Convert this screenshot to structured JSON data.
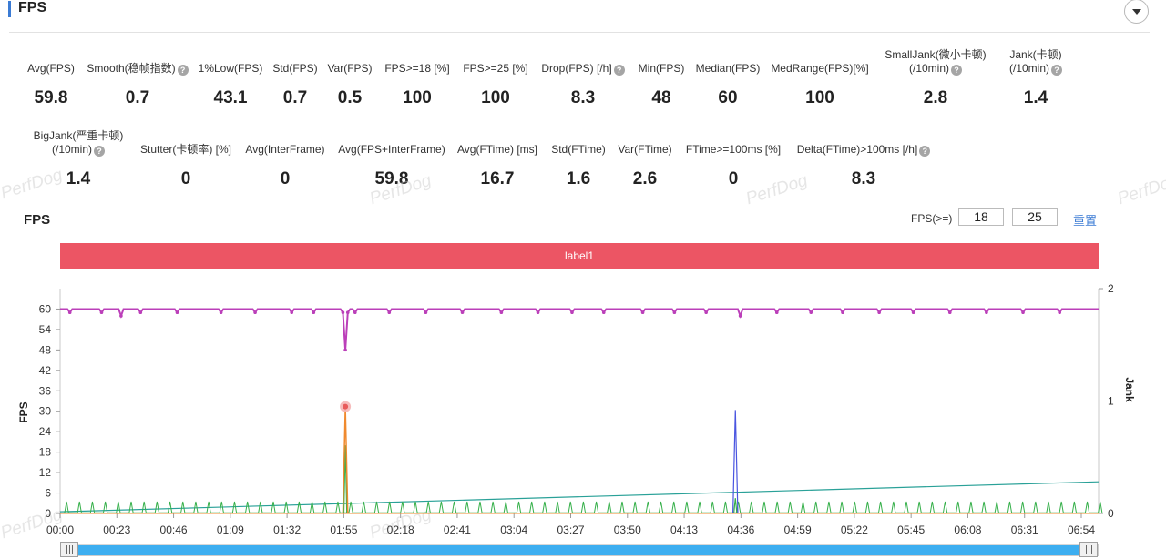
{
  "header": {
    "title": "FPS"
  },
  "metrics_row1": [
    {
      "label": "Avg(FPS)",
      "value": "59.8"
    },
    {
      "label": "Smooth(稳帧指数)",
      "value": "0.7",
      "help": true
    },
    {
      "label": "1%Low(FPS)",
      "value": "43.1"
    },
    {
      "label": "Std(FPS)",
      "value": "0.7"
    },
    {
      "label": "Var(FPS)",
      "value": "0.5"
    },
    {
      "label": "FPS>=18 [%]",
      "value": "100"
    },
    {
      "label": "FPS>=25 [%]",
      "value": "100"
    },
    {
      "label": "Drop(FPS) [/h]",
      "value": "8.3",
      "help": true
    },
    {
      "label": "Min(FPS)",
      "value": "48"
    },
    {
      "label": "Median(FPS)",
      "value": "60"
    },
    {
      "label": "MedRange(FPS)[%]",
      "value": "100"
    },
    {
      "label": "SmallJank(微小卡顿)",
      "label2": "(/10min)",
      "value": "2.8",
      "help": true
    },
    {
      "label": "Jank(卡顿)",
      "label2": "(/10min)",
      "value": "1.4",
      "help": true
    }
  ],
  "metrics_row2": [
    {
      "label": "BigJank(严重卡顿)",
      "label2": "(/10min)",
      "value": "1.4",
      "help": true
    },
    {
      "label": "Stutter(卡顿率) [%]",
      "value": "0"
    },
    {
      "label": "Avg(InterFrame)",
      "value": "0"
    },
    {
      "label": "Avg(FPS+InterFrame)",
      "value": "59.8"
    },
    {
      "label": "Avg(FTime) [ms]",
      "value": "16.7"
    },
    {
      "label": "Std(FTime)",
      "value": "1.6"
    },
    {
      "label": "Var(FTime)",
      "value": "2.6"
    },
    {
      "label": "FTime>=100ms [%]",
      "value": "0"
    },
    {
      "label": "Delta(FTime)>100ms [/h]",
      "value": "8.3",
      "help": true
    }
  ],
  "watermark": "PerfDog",
  "chart_section": {
    "title": "FPS",
    "threshold_label": "FPS(>=)",
    "threshold_1": "18",
    "threshold_2": "25",
    "reset_label": "重置",
    "label_bar": "label1"
  },
  "chart_data": {
    "type": "line",
    "ylabel": "FPS",
    "y2label": "Jank",
    "yticks": [
      0,
      6,
      12,
      18,
      24,
      30,
      36,
      42,
      48,
      54,
      60
    ],
    "ylim": [
      0,
      66
    ],
    "y2ticks": [
      0,
      1,
      2
    ],
    "y2lim": [
      0,
      2
    ],
    "xlim": [
      0,
      426
    ],
    "x_tick_labels": [
      "00:00",
      "00:23",
      "00:46",
      "01:09",
      "01:32",
      "01:55",
      "02:18",
      "02:41",
      "03:04",
      "03:27",
      "03:50",
      "04:13",
      "04:36",
      "04:59",
      "05:22",
      "05:45",
      "06:08",
      "06:31",
      "06:54"
    ],
    "colors": {
      "fps": "#bb3fb9",
      "jank": "#f08a2e",
      "bigjank": "#e85b5b",
      "smalljank": "#4a55e0",
      "ftime": "#36b04a",
      "trend": "#2aa198",
      "axis": "#999999"
    },
    "series": [
      {
        "name": "FPS",
        "baseline": 60,
        "dips": [
          [
            4,
            59
          ],
          [
            17,
            59
          ],
          [
            25,
            58
          ],
          [
            33,
            59
          ],
          [
            48,
            59
          ],
          [
            66,
            59
          ],
          [
            80,
            59
          ],
          [
            95,
            59
          ],
          [
            104,
            59
          ],
          [
            116,
            59
          ],
          [
            117,
            48
          ],
          [
            118,
            59
          ],
          [
            121,
            59
          ],
          [
            135,
            59
          ],
          [
            150,
            59
          ],
          [
            165,
            59
          ],
          [
            181,
            59
          ],
          [
            196,
            59
          ],
          [
            210,
            59
          ],
          [
            223,
            59
          ],
          [
            239,
            59
          ],
          [
            252,
            59
          ],
          [
            265,
            59
          ],
          [
            279,
            58
          ],
          [
            294,
            59
          ],
          [
            308,
            59
          ],
          [
            321,
            59
          ],
          [
            336,
            59
          ],
          [
            350,
            59
          ],
          [
            365,
            59
          ],
          [
            380,
            59
          ],
          [
            395,
            59
          ],
          [
            410,
            59
          ]
        ]
      },
      {
        "name": "Jank",
        "points": [
          [
            116,
            0
          ],
          [
            117,
            0.95
          ],
          [
            118,
            0
          ]
        ]
      },
      {
        "name": "BigJank",
        "points": [
          [
            117,
            0.95
          ]
        ]
      },
      {
        "name": "SmallJank",
        "points": [
          [
            276,
            0
          ],
          [
            277,
            0.92
          ],
          [
            278,
            0
          ]
        ]
      },
      {
        "name": "FTime",
        "spike_interval": 5.3,
        "spike_height": 3.5,
        "extra": [
          [
            117,
            20
          ],
          [
            277,
            4.5
          ]
        ]
      },
      {
        "name": "Trend",
        "points": [
          [
            0,
            0.5
          ],
          [
            426,
            9.3
          ]
        ]
      }
    ]
  }
}
